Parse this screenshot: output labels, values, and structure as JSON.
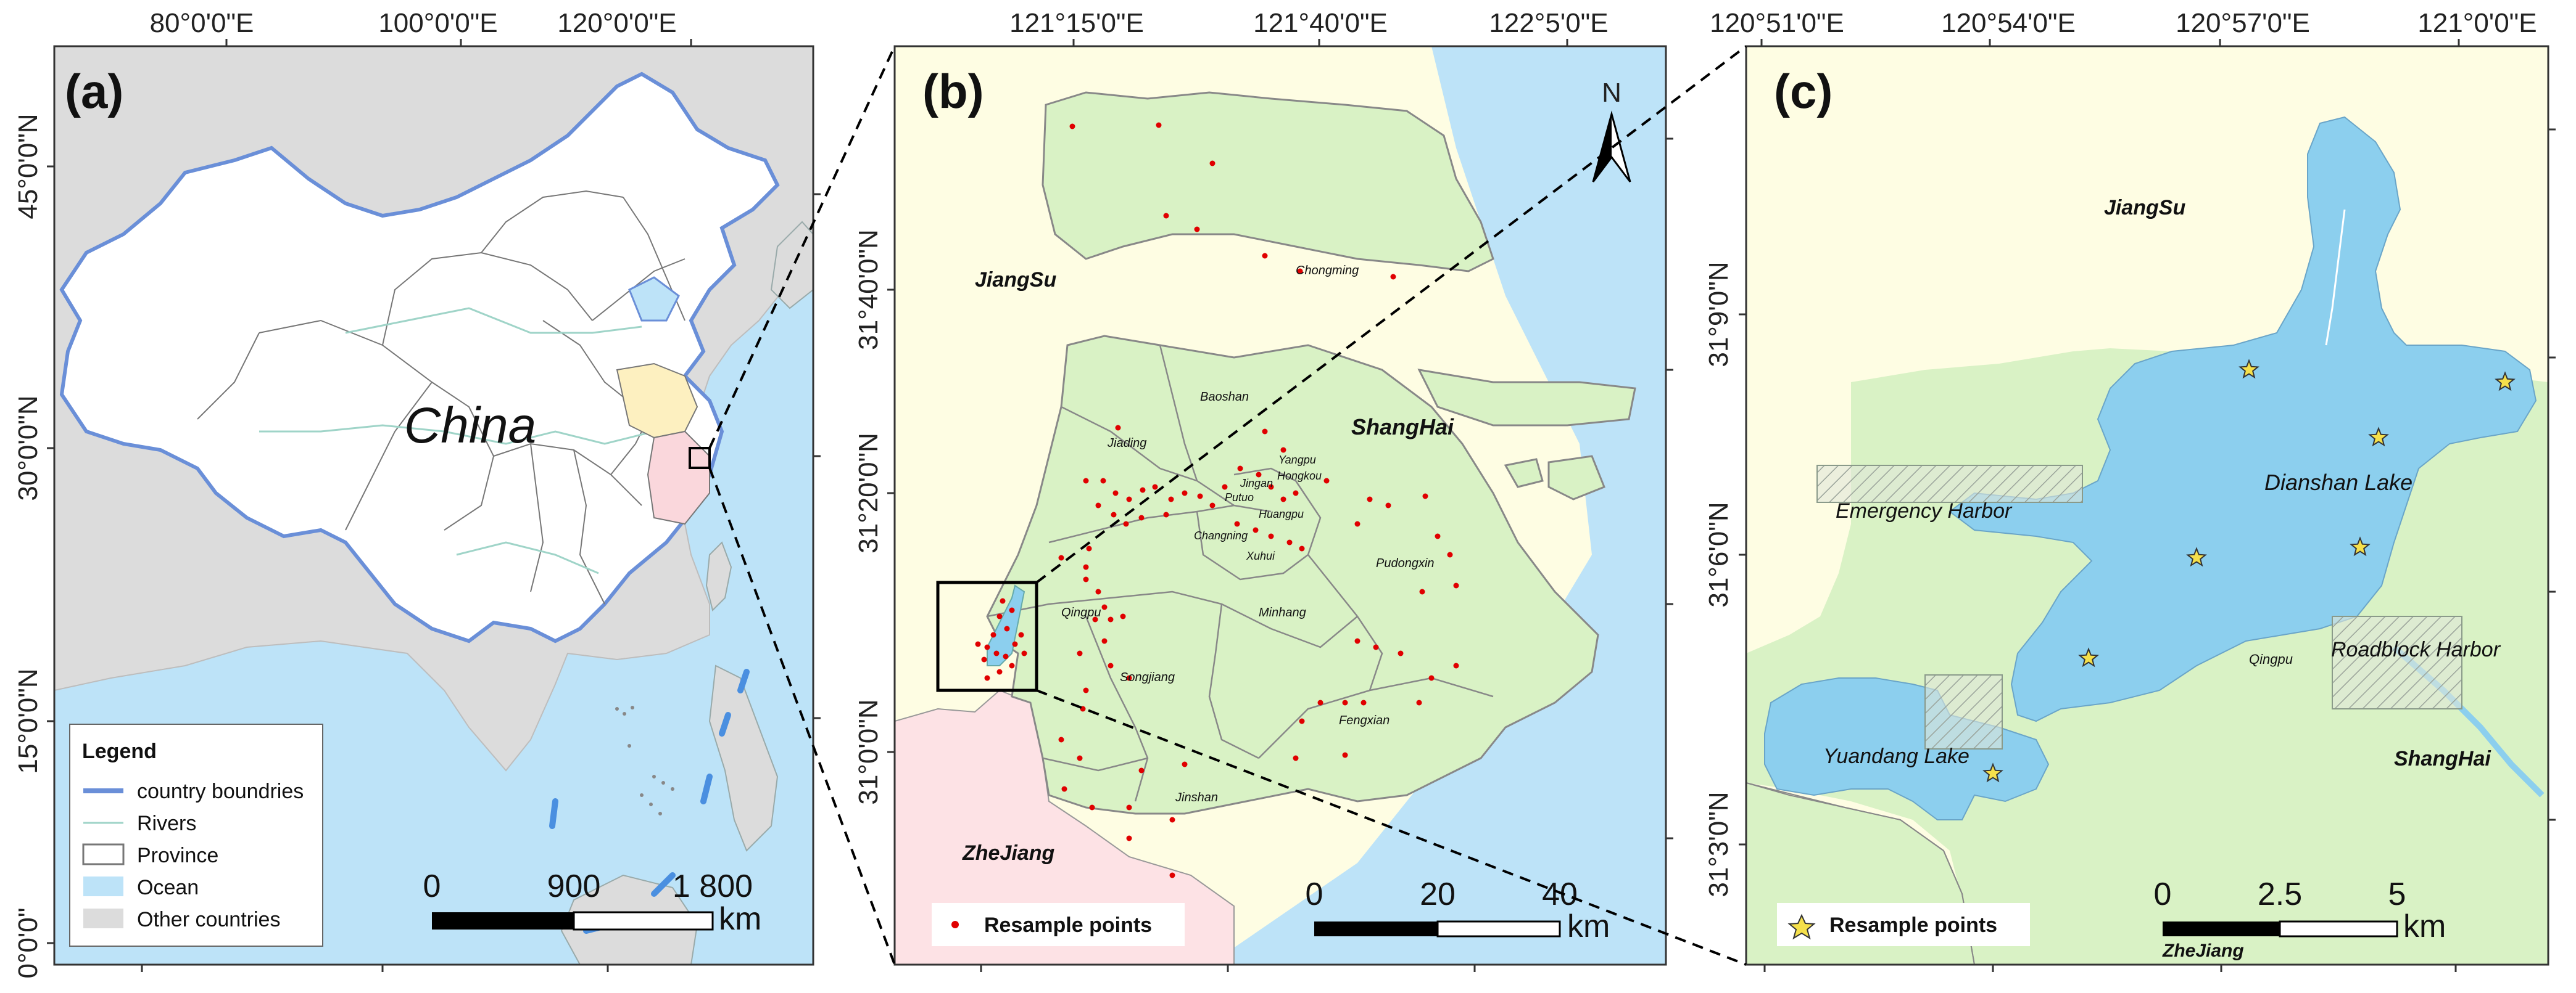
{
  "colors": {
    "ocean": "#bde3f8",
    "land_china": "#ffffff",
    "other_countries": "#dcdcdc",
    "jiangsu": "#fefde3",
    "zhejiang": "#fde2e5",
    "shanghai": "#d9f2c5",
    "lake": "#8ccfee",
    "points": "#e00000",
    "star": "#f5e04b",
    "boundary": "#6a8fd8"
  },
  "panel_a": {
    "label": "(a)",
    "top_ticks": [
      "80°0'0\"E",
      "100°0'0\"E",
      "120°0'0\"E"
    ],
    "left_ticks": [
      "45°0'0\"N",
      "30°0'0\"N",
      "15°0'0\"N",
      "0°0'0\""
    ],
    "country_label": "China",
    "legend": {
      "title": "Legend",
      "items": [
        "country boundries",
        "Rivers",
        "Province",
        "Ocean",
        "Other countries"
      ]
    },
    "scalebar": {
      "ticks": [
        "0",
        "900",
        "1 800"
      ],
      "unit": "km"
    }
  },
  "panel_b": {
    "label": "(b)",
    "top_ticks": [
      "121°15'0\"E",
      "121°40'0\"E",
      "122°5'0\"E"
    ],
    "left_ticks": [
      "31°40'0\"N",
      "31°20'0\"N",
      "31°0'0\"N"
    ],
    "north": "N",
    "regions": {
      "jiangsu": "JiangSu",
      "shanghai": "ShangHai",
      "zhejiang": "ZheJiang"
    },
    "districts": [
      "Chongming",
      "Baoshan",
      "Jiading",
      "Yangpu",
      "Jingan",
      "Hongkou",
      "Putuo",
      "Huangpu",
      "Changning",
      "Xuhui",
      "Pudongxin",
      "Qingpu",
      "Minhang",
      "Songjiang",
      "Fengxian",
      "Jinshan"
    ],
    "legend_item": "Resample points",
    "scalebar": {
      "ticks": [
        "0",
        "20",
        "40"
      ],
      "unit": "km"
    }
  },
  "panel_c": {
    "label": "(c)",
    "top_ticks": [
      "120°51'0\"E",
      "120°54'0\"E",
      "120°57'0\"E",
      "121°0'0\"E"
    ],
    "left_ticks": [
      "31°9'0\"N",
      "31°6'0\"N",
      "31°3'0\"N"
    ],
    "regions": {
      "jiangsu": "JiangSu",
      "shanghai": "ShangHai",
      "zhejiang": "ZheJiang"
    },
    "lakes": {
      "dianshan": "Dianshan Lake",
      "yuandang": "Yuandang Lake"
    },
    "harbors": {
      "emergency": "Emergency Harbor",
      "roadblock": "Roadblock Harbor"
    },
    "small_label": "Qingpu",
    "legend_item": "Resample points",
    "scalebar": {
      "ticks": [
        "0",
        "2.5",
        "5"
      ],
      "unit": "km"
    }
  }
}
